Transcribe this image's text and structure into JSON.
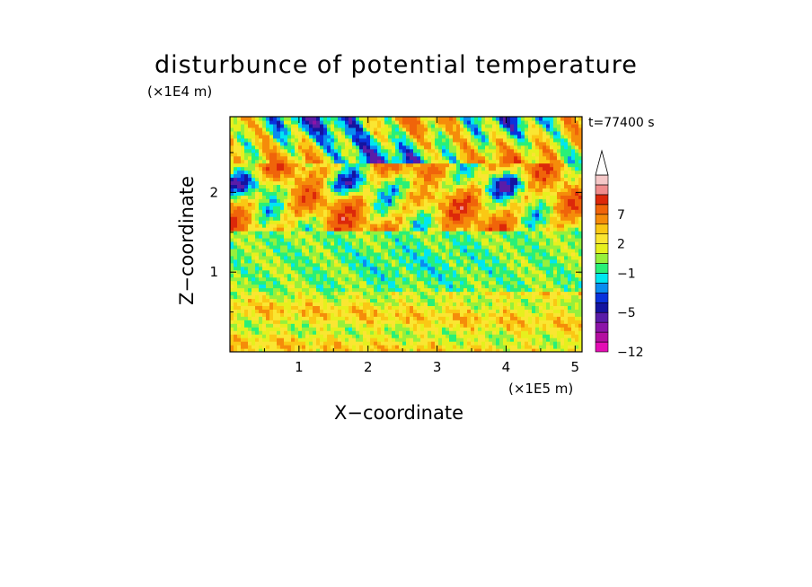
{
  "chart_data": {
    "type": "heatmap",
    "title": "disturbunce of potential temperature",
    "time_label": "t=77400 s",
    "xlabel": "X−coordinate",
    "ylabel": "Z−coordinate",
    "x_unit": "(×1E5 m)",
    "z_unit": "(×1E4 m)",
    "x_range": [
      0,
      5.1
    ],
    "z_range": [
      0,
      2.95
    ],
    "x_ticks": [
      1,
      2,
      3,
      4,
      5
    ],
    "x_tick_labels": [
      "1",
      "2",
      "3",
      "4",
      "5"
    ],
    "z_ticks": [
      1,
      2
    ],
    "z_tick_labels": [
      "1",
      "2"
    ],
    "colorbar": {
      "levels": [
        -12,
        -10,
        -8,
        -6,
        -5,
        -4,
        -3,
        -2,
        -1,
        0,
        1,
        2,
        3,
        5,
        7,
        9,
        11
      ],
      "colors": [
        "#e40eb4",
        "#b40ea0",
        "#8c14a8",
        "#5a1ca8",
        "#1414a0",
        "#0a32dc",
        "#0a8cf0",
        "#00e6f0",
        "#28f078",
        "#96f03c",
        "#e6f01e",
        "#fae632",
        "#fac814",
        "#f58c0a",
        "#f0640a",
        "#dc280a",
        "#f08c8c",
        "#f5c8c8"
      ],
      "tick_labels": [
        {
          "level": 7,
          "label": "7"
        },
        {
          "level": 2,
          "label": "2"
        },
        {
          "level": -1,
          "label": "−1"
        },
        {
          "level": -5,
          "label": "−5"
        },
        {
          "level": -12,
          "label": "−12"
        }
      ],
      "extend": "max"
    }
  }
}
